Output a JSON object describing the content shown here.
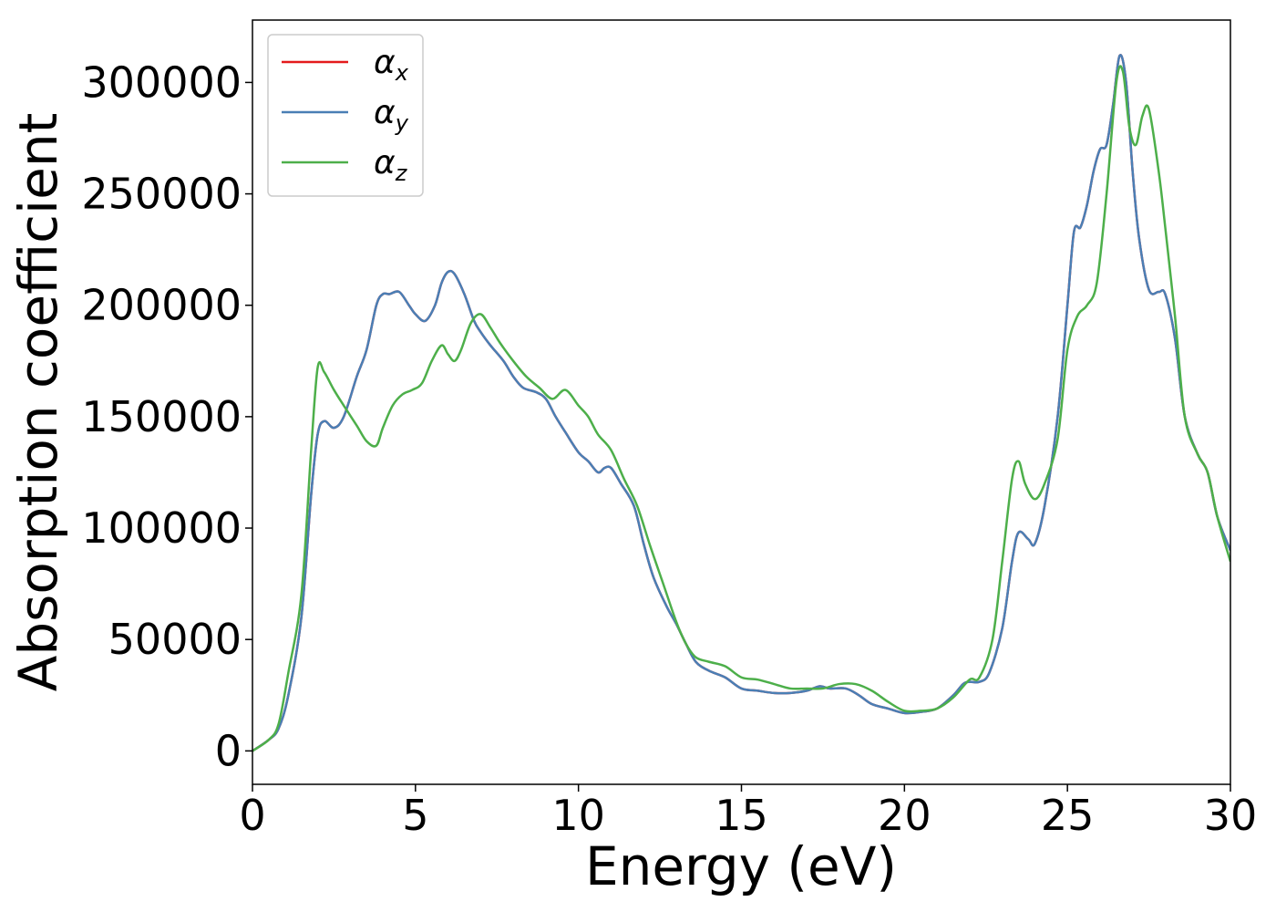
{
  "chart_data": {
    "type": "line",
    "xlabel": "Energy (eV)",
    "ylabel": "Absorption coefficient",
    "xlim": [
      0,
      30
    ],
    "ylim": [
      -15000,
      328000
    ],
    "xticks": [
      0,
      5,
      10,
      15,
      20,
      25,
      30
    ],
    "xtick_labels": [
      "0",
      "5",
      "10",
      "15",
      "20",
      "25",
      "30"
    ],
    "yticks": [
      0,
      50000,
      100000,
      150000,
      200000,
      250000,
      300000
    ],
    "ytick_labels": [
      "0",
      "50000",
      "100000",
      "150000",
      "200000",
      "250000",
      "300000"
    ],
    "grid": false,
    "legend_position": "top-left",
    "series": [
      {
        "name": "α",
        "subscript": "x",
        "color": "#e41a1c",
        "x": [
          0,
          0.5,
          0.8,
          1.1,
          1.5,
          1.8,
          2.0,
          2.2,
          2.5,
          2.8,
          3.2,
          3.5,
          3.8,
          4.0,
          4.2,
          4.5,
          4.8,
          5.0,
          5.3,
          5.6,
          5.8,
          6.0,
          6.2,
          6.5,
          6.8,
          7.0,
          7.3,
          7.7,
          8.0,
          8.3,
          8.7,
          9.0,
          9.3,
          9.6,
          10.0,
          10.3,
          10.6,
          10.8,
          11.0,
          11.3,
          11.7,
          12.0,
          12.3,
          12.7,
          13.0,
          13.3,
          13.6,
          14.0,
          14.5,
          15.0,
          15.5,
          16.0,
          16.5,
          17.0,
          17.4,
          17.7,
          18.2,
          18.6,
          19.0,
          19.5,
          20.0,
          20.5,
          21.0,
          21.5,
          21.8,
          22.0,
          22.3,
          22.6,
          23.0,
          23.3,
          23.5,
          23.8,
          24.0,
          24.3,
          24.7,
          25.0,
          25.2,
          25.4,
          25.6,
          25.8,
          26.0,
          26.2,
          26.4,
          26.6,
          26.8,
          27.0,
          27.2,
          27.5,
          27.8,
          28.0,
          28.3,
          28.6,
          29.0,
          29.3,
          29.6,
          30.0
        ],
        "y": [
          0,
          5000,
          10000,
          25000,
          60000,
          115000,
          142000,
          148000,
          145000,
          150000,
          168000,
          180000,
          200000,
          205000,
          205000,
          206000,
          200000,
          196000,
          193000,
          200000,
          210000,
          215000,
          214000,
          205000,
          193000,
          188000,
          182000,
          175000,
          168000,
          163000,
          161000,
          158000,
          150000,
          143000,
          134000,
          130000,
          125000,
          127000,
          127000,
          120000,
          110000,
          93000,
          78000,
          65000,
          57000,
          48000,
          40000,
          36000,
          33000,
          28000,
          27000,
          26000,
          26000,
          27000,
          29000,
          28000,
          28000,
          25000,
          21000,
          19000,
          17000,
          17500,
          19000,
          25000,
          30000,
          31000,
          31000,
          35000,
          55000,
          85000,
          98000,
          95000,
          93000,
          110000,
          150000,
          200000,
          233000,
          235000,
          245000,
          260000,
          270000,
          272000,
          290000,
          312000,
          300000,
          260000,
          230000,
          207000,
          206000,
          205000,
          185000,
          150000,
          133000,
          125000,
          105000,
          90000
        ]
      },
      {
        "name": "α",
        "subscript": "y",
        "color": "#4a7fb5",
        "x": [
          0,
          0.5,
          0.8,
          1.1,
          1.5,
          1.8,
          2.0,
          2.2,
          2.5,
          2.8,
          3.2,
          3.5,
          3.8,
          4.0,
          4.2,
          4.5,
          4.8,
          5.0,
          5.3,
          5.6,
          5.8,
          6.0,
          6.2,
          6.5,
          6.8,
          7.0,
          7.3,
          7.7,
          8.0,
          8.3,
          8.7,
          9.0,
          9.3,
          9.6,
          10.0,
          10.3,
          10.6,
          10.8,
          11.0,
          11.3,
          11.7,
          12.0,
          12.3,
          12.7,
          13.0,
          13.3,
          13.6,
          14.0,
          14.5,
          15.0,
          15.5,
          16.0,
          16.5,
          17.0,
          17.4,
          17.7,
          18.2,
          18.6,
          19.0,
          19.5,
          20.0,
          20.5,
          21.0,
          21.5,
          21.8,
          22.0,
          22.3,
          22.6,
          23.0,
          23.3,
          23.5,
          23.8,
          24.0,
          24.3,
          24.7,
          25.0,
          25.2,
          25.4,
          25.6,
          25.8,
          26.0,
          26.2,
          26.4,
          26.6,
          26.8,
          27.0,
          27.2,
          27.5,
          27.8,
          28.0,
          28.3,
          28.6,
          29.0,
          29.3,
          29.6,
          30.0
        ],
        "y": [
          0,
          5000,
          10000,
          25000,
          60000,
          115000,
          142000,
          148000,
          145000,
          150000,
          168000,
          180000,
          200000,
          205000,
          205000,
          206000,
          200000,
          196000,
          193000,
          200000,
          210000,
          215000,
          214000,
          205000,
          193000,
          188000,
          182000,
          175000,
          168000,
          163000,
          161000,
          158000,
          150000,
          143000,
          134000,
          130000,
          125000,
          127000,
          127000,
          120000,
          110000,
          93000,
          78000,
          65000,
          57000,
          48000,
          40000,
          36000,
          33000,
          28000,
          27000,
          26000,
          26000,
          27000,
          29000,
          28000,
          28000,
          25000,
          21000,
          19000,
          17000,
          17500,
          19000,
          25000,
          30000,
          31000,
          31000,
          35000,
          55000,
          85000,
          98000,
          95000,
          93000,
          110000,
          150000,
          200000,
          233000,
          235000,
          245000,
          260000,
          270000,
          272000,
          290000,
          312000,
          300000,
          260000,
          230000,
          207000,
          206000,
          205000,
          185000,
          150000,
          133000,
          125000,
          105000,
          90000
        ]
      },
      {
        "name": "α",
        "subscript": "z",
        "color": "#4daf4a",
        "x": [
          0,
          0.5,
          0.8,
          1.1,
          1.5,
          1.8,
          2.0,
          2.2,
          2.5,
          2.8,
          3.2,
          3.5,
          3.8,
          4.0,
          4.3,
          4.6,
          4.9,
          5.2,
          5.5,
          5.8,
          6.0,
          6.2,
          6.4,
          6.7,
          7.0,
          7.3,
          7.6,
          8.0,
          8.4,
          8.8,
          9.2,
          9.6,
          10.0,
          10.3,
          10.6,
          11.0,
          11.4,
          11.8,
          12.2,
          12.6,
          13.0,
          13.3,
          13.6,
          14.0,
          14.5,
          15.0,
          15.5,
          16.0,
          16.5,
          17.0,
          17.5,
          18.0,
          18.5,
          19.0,
          19.5,
          20.0,
          20.5,
          21.0,
          21.5,
          22.0,
          22.3,
          22.7,
          23.0,
          23.3,
          23.5,
          23.7,
          24.0,
          24.3,
          24.7,
          25.0,
          25.3,
          25.6,
          25.9,
          26.2,
          26.5,
          26.7,
          26.9,
          27.1,
          27.3,
          27.5,
          27.8,
          28.0,
          28.3,
          28.6,
          29.0,
          29.3,
          29.6,
          30.0
        ],
        "y": [
          0,
          5000,
          12000,
          35000,
          70000,
          135000,
          172000,
          170000,
          162000,
          155000,
          146000,
          139000,
          137000,
          145000,
          155000,
          160000,
          162000,
          165000,
          175000,
          182000,
          178000,
          175000,
          180000,
          192000,
          196000,
          190000,
          183000,
          175000,
          168000,
          163000,
          158000,
          162000,
          155000,
          150000,
          142000,
          135000,
          122000,
          110000,
          92000,
          75000,
          58000,
          48000,
          42000,
          40000,
          38000,
          33000,
          32000,
          30000,
          28000,
          28000,
          28000,
          30000,
          30000,
          27000,
          22000,
          18000,
          18000,
          19000,
          24000,
          32000,
          33000,
          50000,
          85000,
          122000,
          130000,
          120000,
          113000,
          120000,
          140000,
          180000,
          195000,
          200000,
          210000,
          250000,
          300000,
          305000,
          280000,
          272000,
          285000,
          288000,
          260000,
          235000,
          195000,
          150000,
          133000,
          125000,
          105000,
          85000
        ]
      }
    ]
  }
}
